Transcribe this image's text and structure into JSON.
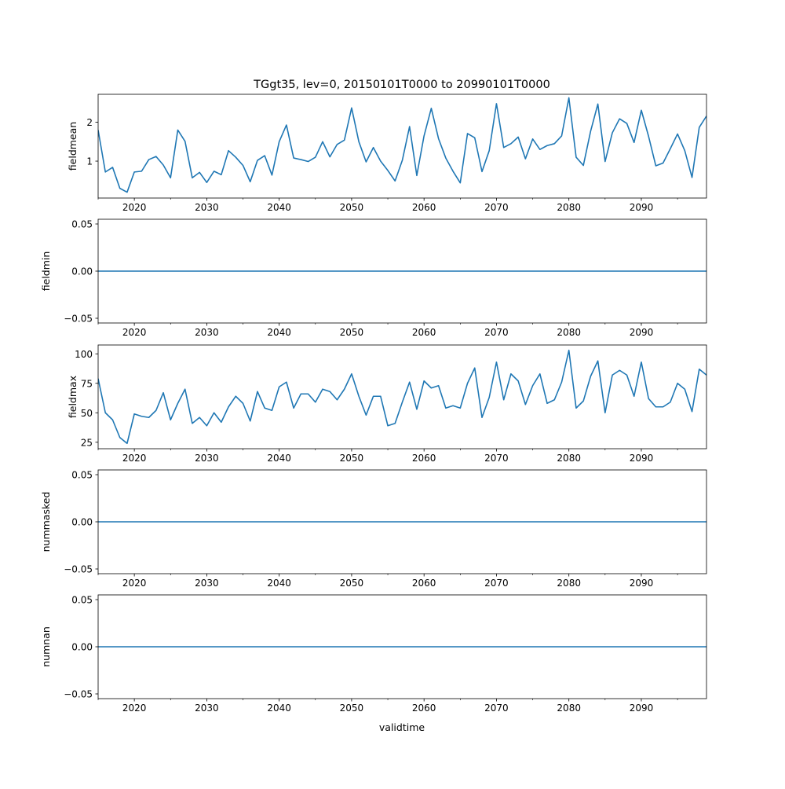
{
  "title": "TGgt35, lev=0, 20150101T0000 to 20990101T0000",
  "xlabel": "validtime",
  "colors": {
    "line": "#1f77b4",
    "axes": "#000000",
    "background": "#ffffff"
  },
  "chart_data": [
    {
      "type": "line",
      "name": "fieldmean",
      "ylabel": "fieldmean",
      "xlim": [
        2015,
        2099
      ],
      "ylim": [
        0.05,
        2.72
      ],
      "xticks": [
        2020,
        2030,
        2040,
        2050,
        2060,
        2070,
        2080,
        2090
      ],
      "xtick_labels": [
        "2020",
        "2030",
        "2040",
        "2050",
        "2060",
        "2070",
        "2080",
        "2090"
      ],
      "yticks": [
        1,
        2
      ],
      "ytick_labels": [
        "1",
        "2"
      ],
      "x": [
        2015,
        2016,
        2017,
        2018,
        2019,
        2020,
        2021,
        2022,
        2023,
        2024,
        2025,
        2026,
        2027,
        2028,
        2029,
        2030,
        2031,
        2032,
        2033,
        2034,
        2035,
        2036,
        2037,
        2038,
        2039,
        2040,
        2041,
        2042,
        2043,
        2044,
        2045,
        2046,
        2047,
        2048,
        2049,
        2050,
        2051,
        2052,
        2053,
        2054,
        2055,
        2056,
        2057,
        2058,
        2059,
        2060,
        2061,
        2062,
        2063,
        2064,
        2065,
        2066,
        2067,
        2068,
        2069,
        2070,
        2071,
        2072,
        2073,
        2074,
        2075,
        2076,
        2077,
        2078,
        2079,
        2080,
        2081,
        2082,
        2083,
        2084,
        2085,
        2086,
        2087,
        2088,
        2089,
        2090,
        2091,
        2092,
        2093,
        2094,
        2095,
        2096,
        2097,
        2098,
        2099
      ],
      "values": [
        1.8,
        0.72,
        0.84,
        0.3,
        0.2,
        0.72,
        0.74,
        1.04,
        1.12,
        0.9,
        0.57,
        1.8,
        1.51,
        0.57,
        0.71,
        0.45,
        0.74,
        0.65,
        1.27,
        1.1,
        0.89,
        0.47,
        1.02,
        1.14,
        0.64,
        1.5,
        1.93,
        1.08,
        1.04,
        0.99,
        1.1,
        1.5,
        1.11,
        1.43,
        1.54,
        2.37,
        1.5,
        0.98,
        1.35,
        1.0,
        0.76,
        0.49,
        1.02,
        1.89,
        0.63,
        1.65,
        2.36,
        1.58,
        1.08,
        0.74,
        0.44,
        1.71,
        1.6,
        0.73,
        1.27,
        2.48,
        1.35,
        1.45,
        1.62,
        1.06,
        1.57,
        1.3,
        1.4,
        1.45,
        1.65,
        2.63,
        1.1,
        0.89,
        1.77,
        2.47,
        0.99,
        1.73,
        2.09,
        1.97,
        1.48,
        2.31,
        1.64,
        0.88,
        0.95,
        1.32,
        1.7,
        1.27,
        0.58,
        1.87,
        2.16
      ]
    },
    {
      "type": "line",
      "name": "fieldmin",
      "ylabel": "fieldmin",
      "xlim": [
        2015,
        2099
      ],
      "ylim": [
        -0.055,
        0.055
      ],
      "xticks": [
        2020,
        2030,
        2040,
        2050,
        2060,
        2070,
        2080,
        2090
      ],
      "xtick_labels": [
        "2020",
        "2030",
        "2040",
        "2050",
        "2060",
        "2070",
        "2080",
        "2090"
      ],
      "yticks": [
        -0.05,
        0,
        0.05
      ],
      "ytick_labels": [
        "−0.05",
        "0.00",
        "0.05"
      ],
      "x": [
        2015,
        2099
      ],
      "values": [
        0,
        0
      ]
    },
    {
      "type": "line",
      "name": "fieldmax",
      "ylabel": "fieldmax",
      "xlim": [
        2015,
        2099
      ],
      "ylim": [
        19.5,
        107.5
      ],
      "xticks": [
        2020,
        2030,
        2040,
        2050,
        2060,
        2070,
        2080,
        2090
      ],
      "xtick_labels": [
        "2020",
        "2030",
        "2040",
        "2050",
        "2060",
        "2070",
        "2080",
        "2090"
      ],
      "yticks": [
        25,
        50,
        75,
        100
      ],
      "ytick_labels": [
        "25",
        "50",
        "75",
        "100"
      ],
      "x": [
        2015,
        2016,
        2017,
        2018,
        2019,
        2020,
        2021,
        2022,
        2023,
        2024,
        2025,
        2026,
        2027,
        2028,
        2029,
        2030,
        2031,
        2032,
        2033,
        2034,
        2035,
        2036,
        2037,
        2038,
        2039,
        2040,
        2041,
        2042,
        2043,
        2044,
        2045,
        2046,
        2047,
        2048,
        2049,
        2050,
        2051,
        2052,
        2053,
        2054,
        2055,
        2056,
        2057,
        2058,
        2059,
        2060,
        2061,
        2062,
        2063,
        2064,
        2065,
        2066,
        2067,
        2068,
        2069,
        2070,
        2071,
        2072,
        2073,
        2074,
        2075,
        2076,
        2077,
        2078,
        2079,
        2080,
        2081,
        2082,
        2083,
        2084,
        2085,
        2086,
        2087,
        2088,
        2089,
        2090,
        2091,
        2092,
        2093,
        2094,
        2095,
        2096,
        2097,
        2098,
        2099
      ],
      "values": [
        79,
        50,
        44,
        29,
        24,
        49,
        47,
        46,
        52,
        67,
        44,
        58,
        70,
        41,
        46,
        39,
        50,
        42,
        55,
        64,
        58,
        43,
        68,
        54,
        52,
        72,
        76,
        54,
        66,
        66,
        59,
        70,
        68,
        61,
        70,
        83,
        64,
        48,
        64,
        64,
        39,
        41,
        59,
        76,
        53,
        77,
        71,
        73,
        54,
        56,
        54,
        75,
        88,
        46,
        63,
        93,
        61,
        83,
        77,
        57,
        73,
        83,
        58,
        61,
        76,
        103,
        54,
        60,
        81,
        94,
        50,
        82,
        86,
        82,
        64,
        93,
        62,
        55,
        55,
        59,
        75,
        70,
        51,
        87,
        82
      ]
    },
    {
      "type": "line",
      "name": "nummasked",
      "ylabel": "nummasked",
      "xlim": [
        2015,
        2099
      ],
      "ylim": [
        -0.055,
        0.055
      ],
      "xticks": [
        2020,
        2030,
        2040,
        2050,
        2060,
        2070,
        2080,
        2090
      ],
      "xtick_labels": [
        "2020",
        "2030",
        "2040",
        "2050",
        "2060",
        "2070",
        "2080",
        "2090"
      ],
      "yticks": [
        -0.05,
        0,
        0.05
      ],
      "ytick_labels": [
        "−0.05",
        "0.00",
        "0.05"
      ],
      "x": [
        2015,
        2099
      ],
      "values": [
        0,
        0
      ]
    },
    {
      "type": "line",
      "name": "numnan",
      "ylabel": "numnan",
      "xlim": [
        2015,
        2099
      ],
      "ylim": [
        -0.055,
        0.055
      ],
      "xticks": [
        2020,
        2030,
        2040,
        2050,
        2060,
        2070,
        2080,
        2090
      ],
      "xtick_labels": [
        "2020",
        "2030",
        "2040",
        "2050",
        "2060",
        "2070",
        "2080",
        "2090"
      ],
      "yticks": [
        -0.05,
        0,
        0.05
      ],
      "ytick_labels": [
        "−0.05",
        "0.00",
        "0.05"
      ],
      "x": [
        2015,
        2099
      ],
      "values": [
        0,
        0
      ]
    }
  ]
}
